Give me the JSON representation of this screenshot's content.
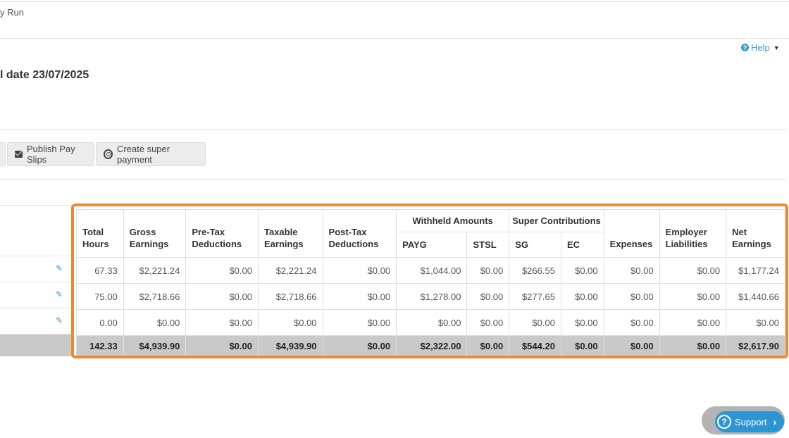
{
  "breadcrumb": "y Run",
  "help": {
    "label": "Help"
  },
  "page_title": "l date 23/07/2025",
  "toolbar": {
    "publish_label": "Publish Pay Slips",
    "super_label": "Create super payment"
  },
  "table": {
    "headers": {
      "total_hours": "Total Hours",
      "gross_earnings": "Gross Earnings",
      "pre_tax": "Pre-Tax Deductions",
      "taxable": "Taxable Earnings",
      "post_tax": "Post-Tax Deductions",
      "withheld_group": "Withheld Amounts",
      "payg": "PAYG",
      "stsl": "STSL",
      "super_group": "Super Contributions",
      "sg": "SG",
      "ec": "EC",
      "expenses": "Expenses",
      "employer_liabilities": "Employer Liabilities",
      "net_earnings": "Net Earnings"
    },
    "rows": [
      [
        "67.33",
        "$2,221.24",
        "$0.00",
        "$2,221.24",
        "$0.00",
        "$1,044.00",
        "$0.00",
        "$266.55",
        "$0.00",
        "$0.00",
        "$0.00",
        "$1,177.24"
      ],
      [
        "75.00",
        "$2,718.66",
        "$0.00",
        "$2,718.66",
        "$0.00",
        "$1,278.00",
        "$0.00",
        "$277.65",
        "$0.00",
        "$0.00",
        "$0.00",
        "$1,440.66"
      ],
      [
        "0.00",
        "$0.00",
        "$0.00",
        "$0.00",
        "$0.00",
        "$0.00",
        "$0.00",
        "$0.00",
        "$0.00",
        "$0.00",
        "$0.00",
        "$0.00"
      ]
    ],
    "totals": [
      "142.33",
      "$4,939.90",
      "$0.00",
      "$4,939.90",
      "$0.00",
      "$2,322.00",
      "$0.00",
      "$544.20",
      "$0.00",
      "$0.00",
      "$0.00",
      "$2,617.90"
    ]
  },
  "support": {
    "label": "Support"
  },
  "colors": {
    "highlight": "#ec8a2d",
    "accent": "#2e95d3",
    "total_row": "#c9c9c9"
  }
}
